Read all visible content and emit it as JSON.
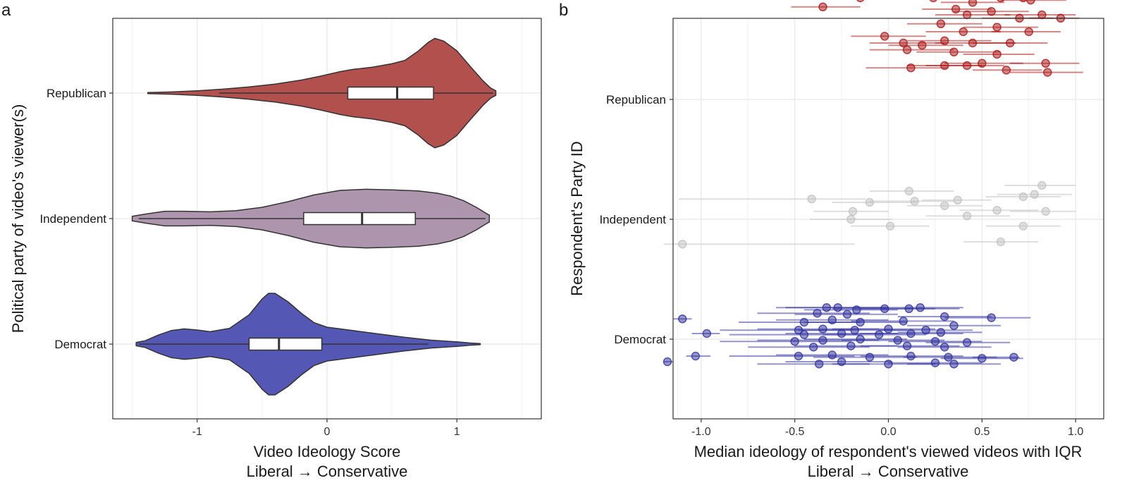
{
  "chart_data": [
    {
      "panel_label": "a",
      "type": "violin",
      "xlabel_line1": "Video Ideology Score",
      "xlabel_line2": "Liberal → Conservative",
      "ylabel": "Political party of video's viewer(s)",
      "xlim": [
        -1.65,
        1.65
      ],
      "xticks": [
        -1,
        0,
        1
      ],
      "xtick_labels": [
        "-1",
        "0",
        "1"
      ],
      "grid": true,
      "legend": "none",
      "categories": [
        "Republican",
        "Independent",
        "Democrat"
      ],
      "series": [
        {
          "name": "Republican",
          "color": "#b2504e",
          "range": [
            -1.38,
            1.3
          ],
          "whisker": [
            -0.83,
            1.28
          ],
          "quartiles": [
            0.16,
            0.54,
            0.82
          ],
          "density": [
            [
              -1.38,
              0.01
            ],
            [
              -1.2,
              0.02
            ],
            [
              -1.0,
              0.04
            ],
            [
              -0.8,
              0.07
            ],
            [
              -0.6,
              0.11
            ],
            [
              -0.4,
              0.16
            ],
            [
              -0.2,
              0.23
            ],
            [
              -0.05,
              0.3
            ],
            [
              0.1,
              0.38
            ],
            [
              0.2,
              0.42
            ],
            [
              0.35,
              0.46
            ],
            [
              0.5,
              0.52
            ],
            [
              0.6,
              0.58
            ],
            [
              0.7,
              0.74
            ],
            [
              0.78,
              0.9
            ],
            [
              0.83,
              0.97
            ],
            [
              0.9,
              0.92
            ],
            [
              1.0,
              0.75
            ],
            [
              1.1,
              0.48
            ],
            [
              1.2,
              0.22
            ],
            [
              1.26,
              0.09
            ],
            [
              1.3,
              0.04
            ]
          ]
        },
        {
          "name": "Independent",
          "color": "#ad95ae",
          "range": [
            -1.5,
            1.25
          ],
          "whisker": [
            -1.45,
            1.22
          ],
          "quartiles": [
            -0.18,
            0.27,
            0.68
          ],
          "density": [
            [
              -1.5,
              0.04
            ],
            [
              -1.4,
              0.08
            ],
            [
              -1.25,
              0.13
            ],
            [
              -1.1,
              0.13
            ],
            [
              -0.9,
              0.12
            ],
            [
              -0.7,
              0.14
            ],
            [
              -0.5,
              0.2
            ],
            [
              -0.3,
              0.3
            ],
            [
              -0.1,
              0.42
            ],
            [
              0.1,
              0.5
            ],
            [
              0.3,
              0.52
            ],
            [
              0.5,
              0.51
            ],
            [
              0.7,
              0.49
            ],
            [
              0.85,
              0.45
            ],
            [
              0.95,
              0.4
            ],
            [
              1.05,
              0.32
            ],
            [
              1.15,
              0.2
            ],
            [
              1.22,
              0.1
            ],
            [
              1.25,
              0.06
            ]
          ]
        },
        {
          "name": "Democrat",
          "color": "#5457b4",
          "range": [
            -1.47,
            1.18
          ],
          "whisker": [
            -1.45,
            0.78
          ],
          "quartiles": [
            -0.6,
            -0.37,
            -0.04
          ],
          "density": [
            [
              -1.47,
              0.03
            ],
            [
              -1.4,
              0.06
            ],
            [
              -1.3,
              0.16
            ],
            [
              -1.2,
              0.24
            ],
            [
              -1.1,
              0.27
            ],
            [
              -1.0,
              0.25
            ],
            [
              -0.9,
              0.22
            ],
            [
              -0.75,
              0.28
            ],
            [
              -0.6,
              0.52
            ],
            [
              -0.5,
              0.8
            ],
            [
              -0.45,
              0.9
            ],
            [
              -0.4,
              0.9
            ],
            [
              -0.3,
              0.75
            ],
            [
              -0.2,
              0.55
            ],
            [
              -0.1,
              0.38
            ],
            [
              0.0,
              0.3
            ],
            [
              0.2,
              0.24
            ],
            [
              0.4,
              0.18
            ],
            [
              0.6,
              0.12
            ],
            [
              0.8,
              0.07
            ],
            [
              1.0,
              0.04
            ],
            [
              1.1,
              0.02
            ],
            [
              1.18,
              0.01
            ]
          ]
        }
      ]
    },
    {
      "panel_label": "b",
      "type": "scatter",
      "xlabel_line1": "Median ideology of respondent's viewed videos with IQR",
      "xlabel_line2": "Liberal → Conservative",
      "ylabel": "Respondent's Party ID",
      "xlim": [
        -1.15,
        1.15
      ],
      "xticks": [
        -1.0,
        -0.5,
        0.0,
        0.5,
        1.0
      ],
      "xtick_labels": [
        "-1.0",
        "-0.5",
        "0.0",
        "0.5",
        "1.0"
      ],
      "grid": true,
      "legend": "none",
      "categories": [
        "Republican",
        "Independent",
        "Democrat"
      ],
      "series": [
        {
          "name": "Republican",
          "color": "#a80f10",
          "points": [
            [
              -0.35,
              0.82,
              -0.52,
              -0.15
            ],
            [
              -0.15,
              0.9,
              -0.3,
              0.05
            ],
            [
              0.24,
              0.9,
              0.05,
              0.45
            ],
            [
              0.45,
              0.86,
              0.28,
              0.62
            ],
            [
              0.6,
              0.9,
              0.42,
              0.78
            ],
            [
              0.66,
              0.93,
              0.5,
              0.85
            ],
            [
              0.72,
              0.9,
              0.55,
              0.9
            ],
            [
              0.76,
              0.88,
              0.6,
              0.95
            ],
            [
              0.36,
              0.8,
              0.18,
              0.55
            ],
            [
              0.42,
              0.75,
              0.25,
              0.65
            ],
            [
              0.55,
              0.78,
              0.35,
              0.75
            ],
            [
              0.7,
              0.72,
              0.5,
              0.88
            ],
            [
              0.82,
              0.75,
              0.62,
              1.0
            ],
            [
              0.92,
              0.72,
              0.75,
              1.02
            ],
            [
              0.28,
              0.67,
              0.1,
              0.5
            ],
            [
              0.4,
              0.6,
              0.2,
              0.6
            ],
            [
              0.58,
              0.64,
              0.4,
              0.8
            ],
            [
              0.75,
              0.6,
              0.55,
              0.92
            ],
            [
              -0.02,
              0.56,
              -0.2,
              0.2
            ],
            [
              0.08,
              0.5,
              -0.1,
              0.3
            ],
            [
              0.18,
              0.48,
              0.0,
              0.4
            ],
            [
              0.3,
              0.52,
              0.1,
              0.55
            ],
            [
              0.45,
              0.5,
              0.25,
              0.68
            ],
            [
              0.65,
              0.5,
              0.45,
              0.85
            ],
            [
              0.1,
              0.44,
              -0.1,
              0.35
            ],
            [
              0.35,
              0.42,
              0.15,
              0.6
            ],
            [
              0.58,
              0.4,
              0.4,
              0.78
            ],
            [
              0.3,
              0.3,
              0.1,
              0.5
            ],
            [
              0.5,
              0.32,
              0.3,
              0.72
            ],
            [
              0.84,
              0.32,
              0.65,
              1.02
            ],
            [
              0.12,
              0.28,
              -0.12,
              0.32
            ],
            [
              0.42,
              0.3,
              0.2,
              0.62
            ],
            [
              0.63,
              0.26,
              0.45,
              0.82
            ],
            [
              0.85,
              0.24,
              0.65,
              1.04
            ]
          ]
        },
        {
          "name": "Independent",
          "color": "#c0c0c0",
          "points": [
            [
              0.82,
              0.3,
              0.62,
              1.0
            ],
            [
              0.11,
              0.25,
              -0.1,
              0.35
            ],
            [
              0.78,
              0.22,
              0.58,
              0.98
            ],
            [
              0.72,
              0.2,
              0.52,
              0.92
            ],
            [
              -0.41,
              0.18,
              -1.12,
              -0.12
            ],
            [
              0.37,
              0.17,
              0.18,
              0.55
            ],
            [
              0.14,
              0.16,
              -0.1,
              0.35
            ],
            [
              -0.1,
              0.15,
              -0.3,
              0.15
            ],
            [
              0.3,
              0.12,
              0.1,
              0.5
            ],
            [
              0.58,
              0.08,
              0.38,
              0.8
            ],
            [
              0.84,
              0.07,
              0.65,
              1.0
            ],
            [
              -0.19,
              0.07,
              -0.4,
              0.0
            ],
            [
              0.42,
              0.03,
              0.2,
              0.65
            ],
            [
              -0.2,
              0.0,
              -0.42,
              0.02
            ],
            [
              0.01,
              -0.06,
              -0.2,
              0.22
            ],
            [
              0.72,
              -0.06,
              0.52,
              0.92
            ],
            [
              -1.1,
              -0.22,
              -1.2,
              -0.18
            ],
            [
              0.6,
              -0.2,
              0.4,
              0.8
            ]
          ]
        },
        {
          "name": "Democrat",
          "color": "#2b2b9c",
          "points": [
            [
              -0.33,
              0.28,
              -0.6,
              -0.05
            ],
            [
              -0.27,
              0.28,
              -0.55,
              0.0
            ],
            [
              -0.17,
              0.26,
              -0.45,
              0.05
            ],
            [
              -0.02,
              0.27,
              -0.3,
              0.25
            ],
            [
              0.11,
              0.27,
              -0.15,
              0.38
            ],
            [
              0.17,
              0.28,
              -0.05,
              0.4
            ],
            [
              -0.38,
              0.23,
              -0.7,
              -0.1
            ],
            [
              -0.22,
              0.22,
              -0.5,
              0.05
            ],
            [
              0.3,
              0.2,
              0.05,
              0.55
            ],
            [
              -1.1,
              0.18,
              -1.15,
              -1.05
            ],
            [
              0.55,
              0.19,
              0.3,
              0.76
            ],
            [
              -0.45,
              0.15,
              -0.8,
              -0.15
            ],
            [
              -0.3,
              0.17,
              -0.6,
              0.0
            ],
            [
              -0.15,
              0.15,
              -0.45,
              0.1
            ],
            [
              0.08,
              0.16,
              -0.2,
              0.35
            ],
            [
              -0.48,
              0.08,
              -0.9,
              -0.2
            ],
            [
              -0.35,
              0.09,
              -0.7,
              -0.05
            ],
            [
              -0.18,
              0.08,
              -0.48,
              0.1
            ],
            [
              0.0,
              0.09,
              -0.3,
              0.25
            ],
            [
              0.2,
              0.08,
              -0.05,
              0.45
            ],
            [
              0.35,
              0.12,
              0.1,
              0.6
            ],
            [
              -0.97,
              0.05,
              -1.05,
              -0.9
            ],
            [
              -0.45,
              0.04,
              -0.85,
              -0.15
            ],
            [
              -0.25,
              0.05,
              -0.55,
              0.05
            ],
            [
              -0.05,
              0.04,
              -0.35,
              0.2
            ],
            [
              0.12,
              0.05,
              -0.15,
              0.4
            ],
            [
              0.28,
              0.06,
              0.05,
              0.5
            ],
            [
              -0.5,
              -0.02,
              -0.9,
              -0.2
            ],
            [
              -0.35,
              -0.01,
              -0.7,
              -0.05
            ],
            [
              -0.15,
              0.0,
              -0.45,
              0.1
            ],
            [
              0.05,
              -0.01,
              -0.25,
              0.3
            ],
            [
              0.25,
              -0.02,
              0.0,
              0.5
            ],
            [
              0.42,
              -0.03,
              0.2,
              0.65
            ],
            [
              -0.4,
              -0.07,
              -0.75,
              -0.1
            ],
            [
              -0.2,
              -0.06,
              -0.5,
              0.05
            ],
            [
              0.1,
              -0.06,
              -0.15,
              0.38
            ],
            [
              0.3,
              -0.07,
              0.05,
              0.55
            ],
            [
              -1.03,
              -0.15,
              -1.08,
              -0.95
            ],
            [
              -0.48,
              -0.15,
              -0.85,
              -0.18
            ],
            [
              -0.3,
              -0.14,
              -0.6,
              0.0
            ],
            [
              -0.1,
              -0.16,
              -0.4,
              0.15
            ],
            [
              0.12,
              -0.15,
              -0.15,
              0.4
            ],
            [
              0.32,
              -0.16,
              0.08,
              0.58
            ],
            [
              0.5,
              -0.17,
              0.28,
              0.72
            ],
            [
              0.67,
              -0.16,
              0.45,
              0.7
            ],
            [
              -1.18,
              -0.2,
              -1.2,
              -1.15
            ],
            [
              -0.37,
              -0.22,
              -0.7,
              -0.1
            ],
            [
              -0.25,
              -0.2,
              -0.55,
              0.02
            ],
            [
              0.0,
              -0.22,
              -0.3,
              0.25
            ],
            [
              0.25,
              -0.21,
              0.0,
              0.5
            ],
            [
              0.35,
              -0.22,
              0.1,
              0.6
            ]
          ]
        }
      ]
    }
  ]
}
